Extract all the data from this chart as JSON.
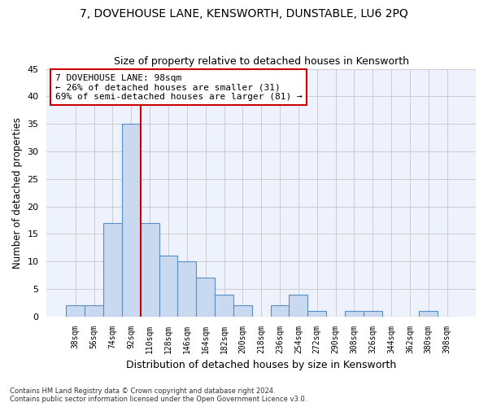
{
  "title": "7, DOVEHOUSE LANE, KENSWORTH, DUNSTABLE, LU6 2PQ",
  "subtitle": "Size of property relative to detached houses in Kensworth",
  "xlabel": "Distribution of detached houses by size in Kensworth",
  "ylabel": "Number of detached properties",
  "categories": [
    "38sqm",
    "56sqm",
    "74sqm",
    "92sqm",
    "110sqm",
    "128sqm",
    "146sqm",
    "164sqm",
    "182sqm",
    "200sqm",
    "218sqm",
    "236sqm",
    "254sqm",
    "272sqm",
    "290sqm",
    "308sqm",
    "326sqm",
    "344sqm",
    "362sqm",
    "380sqm",
    "398sqm"
  ],
  "values": [
    2,
    2,
    17,
    35,
    17,
    11,
    10,
    7,
    4,
    2,
    0,
    2,
    4,
    1,
    0,
    1,
    1,
    0,
    0,
    1,
    0
  ],
  "bar_color": "#c9d9f0",
  "bar_edge_color": "#5b8ec4",
  "ylim": [
    0,
    45
  ],
  "yticks": [
    0,
    5,
    10,
    15,
    20,
    25,
    30,
    35,
    40,
    45
  ],
  "property_line_x": 3.5,
  "annotation_line1": "7 DOVEHOUSE LANE: 98sqm",
  "annotation_line2": "← 26% of detached houses are smaller (31)",
  "annotation_line3": "69% of semi-detached houses are larger (81) →",
  "annotation_box_color": "#ffffff",
  "annotation_box_edge_color": "#cc0000",
  "vline_color": "#cc0000",
  "grid_color": "#cccccc",
  "background_color": "#eef2fc",
  "footer_line1": "Contains HM Land Registry data © Crown copyright and database right 2024.",
  "footer_line2": "Contains public sector information licensed under the Open Government Licence v3.0."
}
